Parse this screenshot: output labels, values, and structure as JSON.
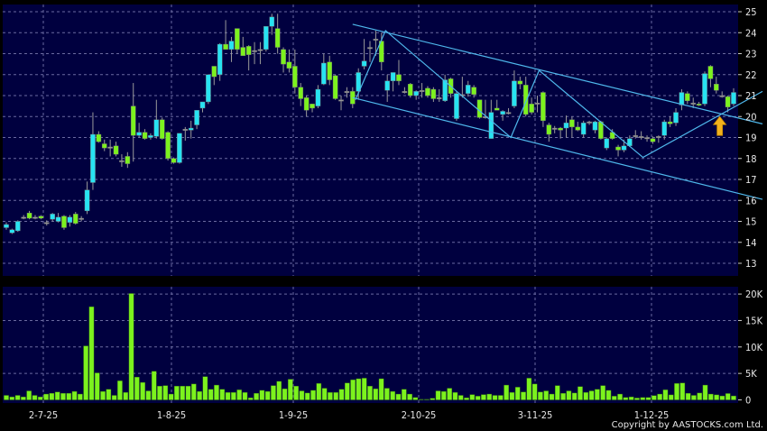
{
  "chart_data": [
    {
      "type": "candlestick",
      "y_ticks": [
        "25",
        "24",
        "23",
        "22",
        "21",
        "20",
        "19",
        "18",
        "17",
        "16",
        "15",
        "14",
        "13"
      ],
      "ylim": [
        12.6,
        25.3
      ],
      "grid": true,
      "colors": {
        "up": "#27e3f2",
        "down": "#7cf21e",
        "background": "#00003f",
        "grid": "#6a6aa0",
        "trendline": "#4fb8ec",
        "arrow": "#f2b21c"
      },
      "ohlc": [
        [
          14.7,
          14.95,
          14.6,
          14.85
        ],
        [
          14.45,
          14.65,
          14.4,
          14.6
        ],
        [
          14.55,
          15.05,
          14.5,
          15.0
        ],
        [
          15.2,
          15.3,
          15.1,
          15.2
        ],
        [
          15.4,
          15.5,
          15.1,
          15.15
        ],
        [
          15.2,
          15.3,
          15.1,
          15.2
        ],
        [
          15.25,
          15.3,
          15.1,
          15.15
        ],
        [
          14.95,
          15.05,
          14.8,
          14.95
        ],
        [
          15.1,
          15.4,
          15.0,
          15.35
        ],
        [
          15.0,
          15.4,
          14.95,
          15.2
        ],
        [
          15.25,
          15.3,
          14.6,
          14.7
        ],
        [
          14.95,
          15.3,
          14.75,
          15.2
        ],
        [
          15.35,
          15.45,
          14.85,
          14.9
        ],
        [
          15.15,
          15.25,
          15.0,
          15.15
        ],
        [
          15.5,
          16.9,
          15.35,
          16.5
        ],
        [
          16.85,
          20.2,
          16.5,
          19.15
        ],
        [
          19.15,
          19.3,
          18.75,
          18.8
        ],
        [
          18.7,
          18.9,
          18.35,
          18.5
        ],
        [
          18.55,
          18.9,
          18.1,
          18.55
        ],
        [
          18.6,
          18.8,
          18.1,
          18.2
        ],
        [
          17.9,
          18.2,
          17.6,
          17.9
        ],
        [
          18.1,
          18.3,
          17.55,
          17.75
        ],
        [
          20.5,
          21.6,
          17.85,
          19.1
        ],
        [
          19.1,
          19.7,
          19.0,
          19.25
        ],
        [
          19.25,
          19.4,
          18.9,
          18.95
        ],
        [
          19.0,
          19.2,
          18.9,
          19.1
        ],
        [
          19.05,
          20.8,
          18.95,
          19.85
        ],
        [
          19.85,
          19.95,
          18.9,
          18.95
        ],
        [
          19.25,
          19.3,
          17.9,
          18.0
        ],
        [
          18.0,
          18.05,
          17.75,
          17.8
        ],
        [
          17.8,
          19.2,
          17.75,
          19.2
        ],
        [
          19.4,
          19.5,
          18.85,
          19.4
        ],
        [
          19.35,
          19.8,
          18.95,
          19.45
        ],
        [
          19.6,
          20.3,
          19.4,
          20.3
        ],
        [
          20.4,
          20.7,
          20.2,
          20.7
        ],
        [
          20.7,
          22.0,
          20.6,
          22.0
        ],
        [
          22.4,
          22.4,
          21.5,
          21.9
        ],
        [
          22.0,
          23.5,
          21.7,
          23.45
        ],
        [
          23.45,
          24.6,
          23.2,
          23.2
        ],
        [
          23.2,
          23.8,
          22.6,
          23.6
        ],
        [
          24.2,
          24.2,
          23.0,
          23.2
        ],
        [
          23.3,
          23.8,
          22.9,
          22.9
        ],
        [
          23.35,
          23.4,
          22.2,
          22.95
        ],
        [
          23.15,
          23.55,
          22.5,
          23.15
        ],
        [
          23.2,
          23.55,
          22.5,
          23.2
        ],
        [
          23.2,
          24.3,
          23.1,
          24.3
        ],
        [
          24.3,
          24.9,
          23.9,
          24.75
        ],
        [
          24.2,
          24.9,
          23.0,
          23.3
        ],
        [
          23.2,
          23.3,
          22.1,
          22.5
        ],
        [
          22.6,
          23.2,
          22.1,
          22.3
        ],
        [
          22.4,
          23.2,
          21.1,
          21.4
        ],
        [
          21.4,
          21.6,
          20.5,
          20.85
        ],
        [
          20.9,
          21.0,
          20.0,
          20.3
        ],
        [
          20.6,
          20.6,
          20.2,
          20.4
        ],
        [
          20.5,
          21.5,
          20.4,
          21.3
        ],
        [
          21.55,
          23.0,
          21.5,
          22.55
        ],
        [
          22.6,
          22.9,
          21.5,
          21.75
        ],
        [
          21.95,
          22.0,
          20.8,
          20.85
        ],
        [
          20.8,
          21.0,
          20.3,
          20.8
        ],
        [
          21.2,
          21.4,
          20.9,
          21.2
        ],
        [
          21.2,
          21.4,
          20.4,
          20.6
        ],
        [
          21.2,
          22.3,
          20.8,
          22.1
        ],
        [
          22.4,
          23.7,
          22.25,
          22.65
        ],
        [
          23.3,
          23.6,
          22.6,
          23.3
        ],
        [
          23.7,
          24.1,
          22.9,
          23.7
        ],
        [
          23.6,
          24.0,
          22.2,
          22.6
        ],
        [
          21.25,
          22.0,
          20.7,
          21.7
        ],
        [
          21.7,
          22.1,
          21.2,
          22.1
        ],
        [
          22.0,
          22.7,
          21.5,
          21.7
        ],
        [
          21.2,
          21.4,
          21.1,
          21.2
        ],
        [
          21.55,
          21.6,
          20.9,
          21.0
        ],
        [
          21.0,
          21.25,
          20.8,
          21.2
        ],
        [
          21.25,
          21.6,
          20.9,
          21.25
        ],
        [
          21.35,
          21.45,
          20.9,
          21.0
        ],
        [
          21.3,
          21.4,
          20.7,
          20.85
        ],
        [
          20.9,
          21.3,
          20.7,
          20.9
        ],
        [
          20.75,
          22.0,
          20.7,
          21.75
        ],
        [
          21.8,
          21.85,
          20.9,
          21.1
        ],
        [
          19.9,
          21.2,
          19.8,
          21.1
        ],
        [
          21.05,
          21.9,
          20.9,
          21.05
        ],
        [
          21.1,
          21.7,
          20.95,
          21.5
        ],
        [
          21.4,
          21.5,
          20.9,
          21.05
        ],
        [
          20.8,
          20.8,
          19.9,
          19.95
        ],
        [
          20.0,
          20.8,
          19.9,
          20.0
        ],
        [
          18.95,
          20.8,
          18.95,
          20.2
        ],
        [
          20.4,
          20.8,
          20.3,
          20.3
        ],
        [
          20.1,
          20.3,
          19.8,
          20.25
        ],
        [
          20.2,
          20.4,
          20.1,
          20.2
        ],
        [
          20.5,
          22.2,
          20.4,
          21.7
        ],
        [
          21.7,
          21.9,
          21.3,
          21.55
        ],
        [
          21.5,
          21.9,
          20.0,
          20.1
        ],
        [
          20.6,
          20.9,
          20.1,
          20.2
        ],
        [
          20.65,
          21.0,
          20.2,
          20.65
        ],
        [
          21.15,
          21.2,
          19.5,
          19.8
        ],
        [
          19.6,
          19.7,
          18.8,
          19.15
        ],
        [
          19.45,
          19.55,
          19.2,
          19.45
        ],
        [
          19.45,
          19.5,
          18.95,
          19.35
        ],
        [
          19.45,
          20.05,
          19.0,
          19.7
        ],
        [
          19.85,
          20.0,
          19.0,
          19.5
        ],
        [
          19.5,
          19.75,
          19.3,
          19.35
        ],
        [
          19.15,
          19.8,
          19.0,
          19.7
        ],
        [
          19.75,
          19.8,
          19.6,
          19.75
        ],
        [
          19.35,
          19.8,
          19.2,
          19.75
        ],
        [
          19.75,
          19.8,
          18.9,
          18.95
        ],
        [
          18.5,
          19.0,
          18.4,
          18.95
        ],
        [
          19.25,
          19.4,
          18.9,
          18.95
        ],
        [
          18.55,
          18.65,
          18.1,
          18.4
        ],
        [
          18.4,
          18.9,
          18.3,
          18.6
        ],
        [
          18.6,
          19.1,
          18.55,
          18.95
        ],
        [
          19.1,
          19.35,
          18.95,
          19.1
        ],
        [
          19.05,
          19.3,
          18.9,
          19.05
        ],
        [
          19.0,
          19.1,
          18.8,
          19.0
        ],
        [
          18.95,
          19.05,
          18.7,
          18.8
        ],
        [
          19.05,
          19.1,
          18.75,
          19.05
        ],
        [
          19.1,
          19.85,
          18.9,
          19.75
        ],
        [
          19.75,
          20.0,
          19.5,
          19.65
        ],
        [
          19.7,
          20.4,
          19.55,
          20.2
        ],
        [
          20.55,
          21.3,
          20.3,
          21.15
        ],
        [
          21.1,
          21.2,
          20.6,
          20.75
        ],
        [
          20.65,
          20.9,
          20.4,
          20.65
        ],
        [
          20.6,
          20.7,
          20.5,
          20.55
        ],
        [
          20.6,
          22.15,
          20.5,
          22.05
        ],
        [
          22.4,
          22.45,
          21.4,
          21.8
        ],
        [
          21.55,
          21.9,
          21.1,
          21.25
        ],
        [
          21.0,
          21.2,
          20.9,
          21.0
        ],
        [
          20.95,
          21.0,
          20.2,
          20.45
        ],
        [
          20.6,
          21.35,
          20.5,
          21.15
        ]
      ],
      "annotations": {
        "channel_upper": [
          [
            60,
            24.4
          ],
          [
            131,
            19.65
          ]
        ],
        "channel_lower": [
          [
            60,
            20.9
          ],
          [
            131,
            16.05
          ]
        ],
        "zigzag": [
          [
            60.5,
            20.8
          ],
          [
            65.7,
            24.1
          ],
          [
            87.4,
            19.0
          ],
          [
            92.3,
            22.2
          ],
          [
            110.3,
            18.05
          ],
          [
            131,
            21.2
          ]
        ],
        "arrow_up": {
          "bar": 123.6,
          "price_tip": 20.0,
          "price_base": 19.1
        }
      }
    },
    {
      "type": "bar",
      "y_ticks": [
        "20K",
        "15K",
        "10K",
        "5K",
        "0"
      ],
      "ylim": [
        0,
        20
      ],
      "unit": "K",
      "x_ticks": [
        "2-7-25",
        "1-8-25",
        "1-9-25",
        "2-10-25",
        "3-11-25",
        "1-12-25"
      ],
      "colors": {
        "bar": "#7cf21e"
      },
      "values": [
        0.85,
        0.57,
        0.85,
        0.57,
        1.7,
        0.85,
        0.57,
        1.1,
        1.25,
        1.5,
        1.25,
        1.25,
        1.6,
        1.1,
        10.2,
        17.6,
        5.1,
        1.6,
        2.0,
        0.85,
        3.6,
        1.4,
        20.1,
        4.3,
        3.3,
        1.7,
        5.4,
        2.6,
        2.7,
        1.1,
        2.6,
        2.6,
        2.6,
        3.0,
        1.6,
        4.4,
        2.0,
        2.8,
        2.0,
        1.4,
        1.4,
        1.9,
        1.4,
        0.4,
        1.25,
        1.8,
        1.6,
        2.7,
        3.5,
        2.1,
        3.9,
        2.6,
        1.7,
        1.3,
        1.8,
        3.1,
        2.2,
        1.4,
        1.4,
        2.0,
        3.2,
        3.8,
        4.0,
        4.1,
        2.6,
        2.1,
        4.0,
        2.2,
        1.6,
        1.1,
        2.0,
        1.1,
        0.45,
        0.1,
        0.1,
        0.3,
        1.7,
        1.6,
        2.2,
        1.4,
        0.85,
        0.4,
        1.0,
        0.7,
        1.0,
        1.1,
        0.85,
        0.85,
        2.8,
        1.4,
        2.4,
        1.5,
        4.1,
        3.0,
        1.5,
        1.7,
        1.1,
        2.7,
        1.25,
        1.7,
        1.3,
        2.5,
        1.4,
        1.7,
        2.0,
        2.7,
        1.8,
        0.7,
        1.1,
        0.45,
        0.57,
        0.35,
        0.45,
        0.45,
        0.8,
        1.1,
        1.9,
        0.95,
        3.1,
        3.2,
        1.25,
        0.85,
        1.3,
        2.8,
        1.1,
        0.95,
        0.75,
        1.2,
        0.75
      ]
    }
  ],
  "copyright": "Copyright by AASTOCKS.com Ltd."
}
